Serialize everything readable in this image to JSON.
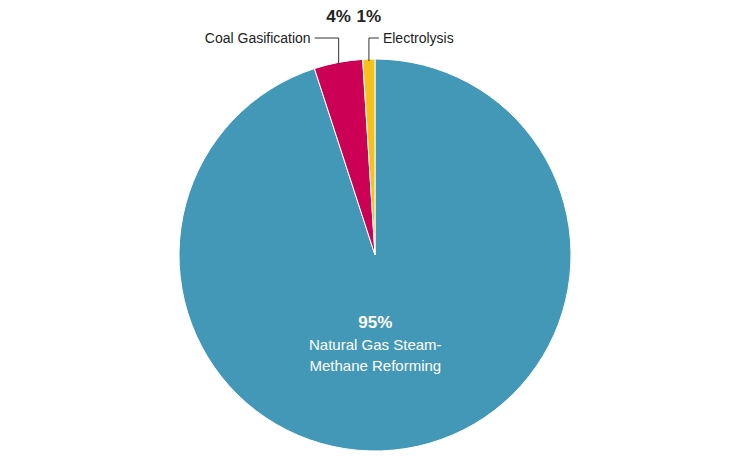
{
  "chart_data": {
    "type": "pie",
    "categories": [
      "Natural Gas Steam-Methane Reforming",
      "Coal Gasification",
      "Electrolysis"
    ],
    "values": [
      95,
      4,
      1
    ],
    "value_labels": [
      "95%",
      "4%",
      "1%"
    ],
    "colors": [
      "#4398b8",
      "#cc0055",
      "#f5c11a"
    ],
    "data_labels": true
  }
}
